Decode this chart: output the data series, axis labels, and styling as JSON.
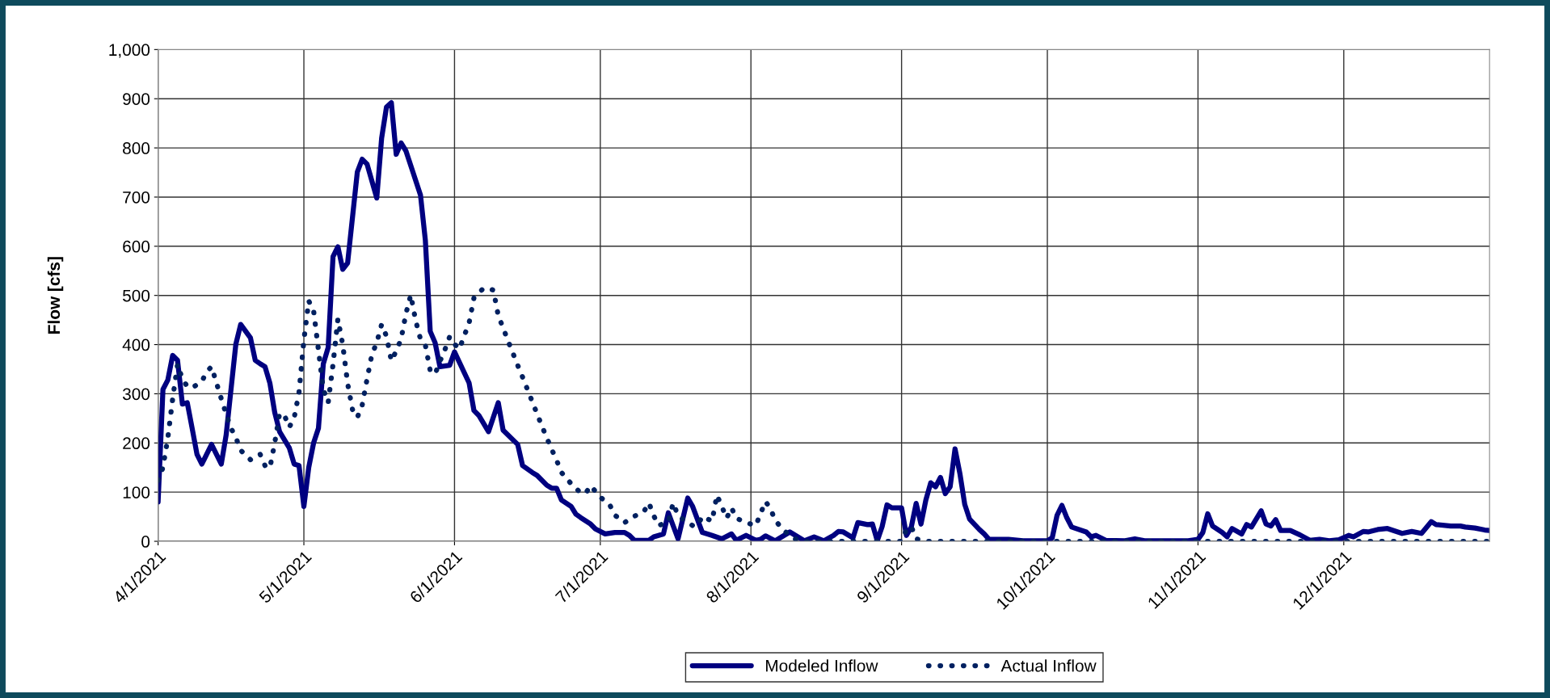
{
  "chart_data": {
    "type": "line",
    "ylabel": "Flow [cfs]",
    "xlim": [
      "2021-04-01",
      "2021-12-31"
    ],
    "xticks": [
      {
        "value": "2021-04-01",
        "label": "4/1/2021"
      },
      {
        "value": "2021-05-01",
        "label": "5/1/2021"
      },
      {
        "value": "2021-06-01",
        "label": "6/1/2021"
      },
      {
        "value": "2021-07-01",
        "label": "7/1/2021"
      },
      {
        "value": "2021-08-01",
        "label": "8/1/2021"
      },
      {
        "value": "2021-09-01",
        "label": "9/1/2021"
      },
      {
        "value": "2021-10-01",
        "label": "10/1/2021"
      },
      {
        "value": "2021-11-01",
        "label": "11/1/2021"
      },
      {
        "value": "2021-12-01",
        "label": "12/1/2021"
      }
    ],
    "ylim": [
      0,
      1000
    ],
    "yticks": [
      0,
      100,
      200,
      300,
      400,
      500,
      600,
      700,
      800,
      900,
      {
        "value": 1000,
        "label": "1,000"
      }
    ],
    "grid": true,
    "legend": "bottom",
    "marker": "none",
    "series": [
      {
        "name": "Modeled Inflow",
        "color": "#000080",
        "line_style": "solid",
        "x": [
          "2021-04-01",
          "2021-04-02",
          "2021-04-03",
          "2021-04-04",
          "2021-04-05",
          "2021-04-06",
          "2021-04-07",
          "2021-04-08",
          "2021-04-09",
          "2021-04-10",
          "2021-04-12",
          "2021-04-14",
          "2021-04-15",
          "2021-04-17",
          "2021-04-18",
          "2021-04-20",
          "2021-04-21",
          "2021-04-22",
          "2021-04-23",
          "2021-04-24",
          "2021-04-25",
          "2021-04-26",
          "2021-04-28",
          "2021-04-29",
          "2021-04-30",
          "2021-05-01",
          "2021-05-02",
          "2021-05-03",
          "2021-05-04",
          "2021-05-05",
          "2021-05-06",
          "2021-05-07",
          "2021-05-08",
          "2021-05-09",
          "2021-05-10",
          "2021-05-12",
          "2021-05-13",
          "2021-05-14",
          "2021-05-16",
          "2021-05-17",
          "2021-05-18",
          "2021-05-19",
          "2021-05-20",
          "2021-05-21",
          "2021-05-22",
          "2021-05-23",
          "2021-05-25",
          "2021-05-26",
          "2021-05-27",
          "2021-05-28",
          "2021-05-29",
          "2021-05-31",
          "2021-06-01",
          "2021-06-04",
          "2021-06-05",
          "2021-06-06",
          "2021-06-08",
          "2021-06-10",
          "2021-06-11",
          "2021-06-14",
          "2021-06-15",
          "2021-06-17",
          "2021-06-18",
          "2021-06-20",
          "2021-06-21",
          "2021-06-22",
          "2021-06-23",
          "2021-06-25",
          "2021-06-26",
          "2021-06-27",
          "2021-06-29",
          "2021-06-30",
          "2021-07-02",
          "2021-07-04",
          "2021-07-06",
          "2021-07-07",
          "2021-07-08",
          "2021-07-11",
          "2021-07-12",
          "2021-07-14",
          "2021-07-15",
          "2021-07-17",
          "2021-07-19",
          "2021-07-20",
          "2021-07-22",
          "2021-07-24",
          "2021-07-26",
          "2021-07-28",
          "2021-07-29",
          "2021-07-31",
          "2021-08-02",
          "2021-08-03",
          "2021-08-04",
          "2021-08-06",
          "2021-08-09",
          "2021-08-12",
          "2021-08-14",
          "2021-08-16",
          "2021-08-18",
          "2021-08-19",
          "2021-08-20",
          "2021-08-22",
          "2021-08-23",
          "2021-08-25",
          "2021-08-26",
          "2021-08-27",
          "2021-08-28",
          "2021-08-29",
          "2021-08-30",
          "2021-08-31",
          "2021-09-01",
          "2021-09-02",
          "2021-09-03",
          "2021-09-04",
          "2021-09-05",
          "2021-09-06",
          "2021-09-07",
          "2021-09-08",
          "2021-09-09",
          "2021-09-10",
          "2021-09-11",
          "2021-09-12",
          "2021-09-13",
          "2021-09-14",
          "2021-09-15",
          "2021-09-17",
          "2021-09-18",
          "2021-09-19",
          "2021-09-23",
          "2021-09-26",
          "2021-10-01",
          "2021-10-02",
          "2021-10-03",
          "2021-10-04",
          "2021-10-05",
          "2021-10-06",
          "2021-10-09",
          "2021-10-10",
          "2021-10-11",
          "2021-10-13",
          "2021-10-17",
          "2021-10-19",
          "2021-10-21",
          "2021-10-30",
          "2021-11-01",
          "2021-11-02",
          "2021-11-03",
          "2021-11-04",
          "2021-11-06",
          "2021-11-07",
          "2021-11-08",
          "2021-11-10",
          "2021-11-11",
          "2021-11-12",
          "2021-11-14",
          "2021-11-15",
          "2021-11-16",
          "2021-11-17",
          "2021-11-18",
          "2021-11-20",
          "2021-11-22",
          "2021-11-24",
          "2021-11-26",
          "2021-11-28",
          "2021-11-30",
          "2021-12-02",
          "2021-12-03",
          "2021-12-05",
          "2021-12-06",
          "2021-12-08",
          "2021-12-10",
          "2021-12-13",
          "2021-12-15",
          "2021-12-17",
          "2021-12-19",
          "2021-12-20",
          "2021-12-23",
          "2021-12-25",
          "2021-12-26",
          "2021-12-28",
          "2021-12-30",
          "2021-12-31"
        ],
        "values": [
          80,
          309,
          328,
          378,
          368,
          279,
          282,
          230,
          177,
          157,
          197,
          157,
          216,
          401,
          441,
          414,
          368,
          361,
          355,
          322,
          262,
          223,
          190,
          157,
          154,
          71,
          150,
          200,
          230,
          361,
          394,
          579,
          599,
          553,
          566,
          751,
          777,
          767,
          698,
          820,
          883,
          892,
          787,
          810,
          794,
          764,
          704,
          612,
          427,
          404,
          355,
          358,
          385,
          322,
          266,
          256,
          223,
          282,
          226,
          197,
          154,
          140,
          134,
          114,
          108,
          108,
          84,
          71,
          55,
          48,
          35,
          25,
          15,
          18,
          18,
          12,
          2,
          2,
          9,
          15,
          58,
          5,
          88,
          71,
          18,
          12,
          5,
          15,
          2,
          12,
          2,
          4,
          11,
          1,
          19,
          1,
          9,
          1,
          12,
          20,
          19,
          7,
          38,
          34,
          35,
          1,
          30,
          74,
          68,
          68,
          68,
          12,
          29,
          77,
          35,
          84,
          119,
          111,
          130,
          97,
          111,
          188,
          138,
          75,
          45,
          24,
          15,
          4,
          4,
          1,
          1,
          7,
          53,
          73,
          48,
          29,
          19,
          9,
          12,
          2,
          1,
          5,
          1,
          1,
          4,
          18,
          56,
          31,
          18,
          9,
          26,
          15,
          34,
          29,
          62,
          35,
          31,
          44,
          22,
          22,
          13,
          2,
          4,
          1,
          3,
          12,
          9,
          20,
          19,
          24,
          26,
          16,
          20,
          16,
          40,
          34,
          31,
          31,
          29,
          27,
          23,
          22
        ]
      },
      {
        "name": "Actual Inflow",
        "color": "#002060",
        "line_style": "dotted",
        "x": [
          "2021-04-01",
          "2021-04-02",
          "2021-04-03",
          "2021-04-04",
          "2021-04-05",
          "2021-04-06",
          "2021-04-07",
          "2021-04-08",
          "2021-04-10",
          "2021-04-11",
          "2021-04-12",
          "2021-04-14",
          "2021-04-15",
          "2021-04-16",
          "2021-04-17",
          "2021-04-18",
          "2021-04-20",
          "2021-04-22",
          "2021-04-23",
          "2021-04-24",
          "2021-04-25",
          "2021-04-26",
          "2021-04-27",
          "2021-04-28",
          "2021-04-29",
          "2021-04-30",
          "2021-05-01",
          "2021-05-02",
          "2021-05-03",
          "2021-05-04",
          "2021-05-05",
          "2021-05-06",
          "2021-05-07",
          "2021-05-08",
          "2021-05-09",
          "2021-05-10",
          "2021-05-11",
          "2021-05-12",
          "2021-05-13",
          "2021-05-14",
          "2021-05-15",
          "2021-05-16",
          "2021-05-17",
          "2021-05-18",
          "2021-05-19",
          "2021-05-20",
          "2021-05-21",
          "2021-05-22",
          "2021-05-23",
          "2021-05-24",
          "2021-05-25",
          "2021-05-26",
          "2021-05-27",
          "2021-05-28",
          "2021-05-29",
          "2021-05-30",
          "2021-05-31",
          "2021-06-01",
          "2021-06-02",
          "2021-06-03",
          "2021-06-04",
          "2021-06-05",
          "2021-06-07",
          "2021-06-09",
          "2021-06-10",
          "2021-06-11",
          "2021-06-12",
          "2021-06-13",
          "2021-06-14",
          "2021-06-15",
          "2021-06-16",
          "2021-06-17",
          "2021-06-18",
          "2021-06-19",
          "2021-06-20",
          "2021-06-21",
          "2021-06-22",
          "2021-06-23",
          "2021-06-25",
          "2021-06-27",
          "2021-06-28",
          "2021-06-29",
          "2021-07-01",
          "2021-07-03",
          "2021-07-04",
          "2021-07-06",
          "2021-07-08",
          "2021-07-10",
          "2021-07-11",
          "2021-07-12",
          "2021-07-13",
          "2021-07-15",
          "2021-07-16",
          "2021-07-17",
          "2021-07-18",
          "2021-07-20",
          "2021-07-21",
          "2021-07-22",
          "2021-07-24",
          "2021-07-25",
          "2021-07-26",
          "2021-07-27",
          "2021-07-28",
          "2021-07-29",
          "2021-07-31",
          "2021-08-02",
          "2021-08-03",
          "2021-08-04",
          "2021-08-05",
          "2021-08-06",
          "2021-08-08",
          "2021-08-10",
          "2021-08-12",
          "2021-09-01",
          "2021-09-02",
          "2021-09-03",
          "2021-09-04",
          "2021-09-06",
          "2021-12-31"
        ],
        "values": [
          124,
          150,
          210,
          290,
          360,
          330,
          315,
          312,
          325,
          345,
          355,
          290,
          259,
          230,
          211,
          185,
          166,
          177,
          154,
          149,
          200,
          260,
          256,
          232,
          251,
          303,
          409,
          489,
          469,
          389,
          309,
          282,
          360,
          452,
          400,
          321,
          268,
          252,
          277,
          330,
          380,
          404,
          441,
          417,
          367,
          387,
          411,
          463,
          501,
          449,
          411,
          399,
          347,
          340,
          366,
          389,
          416,
          401,
          391,
          418,
          444,
          495,
          515,
          511,
          459,
          434,
          408,
          383,
          358,
          334,
          309,
          284,
          259,
          234,
          210,
          187,
          165,
          140,
          117,
          98,
          98,
          113,
          90,
          73,
          53,
          38,
          51,
          61,
          78,
          52,
          32,
          40,
          78,
          52,
          45,
          32,
          32,
          51,
          41,
          94,
          71,
          47,
          68,
          47,
          38,
          32,
          57,
          81,
          67,
          42,
          20,
          5,
          0,
          0,
          24,
          30,
          5,
          0,
          0
        ]
      }
    ]
  }
}
